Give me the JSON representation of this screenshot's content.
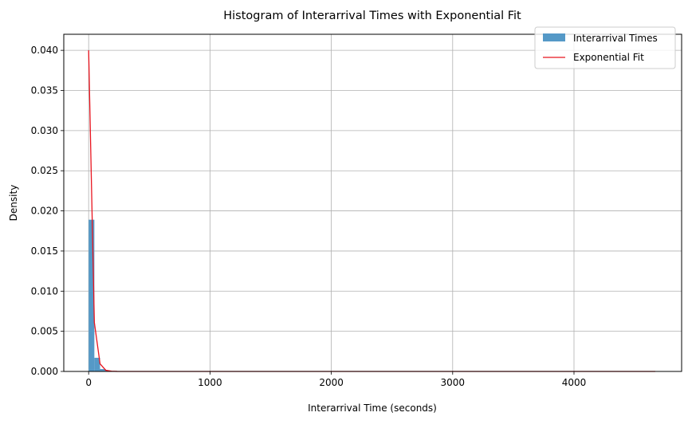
{
  "chart_data": {
    "type": "bar",
    "title": "Histogram of Interarrival Times with Exponential Fit",
    "xlabel": "Interarrival Time (seconds)",
    "ylabel": "Density",
    "xlim": [
      -205,
      4887
    ],
    "ylim": [
      0,
      0.042
    ],
    "x_ticks": [
      0,
      1000,
      2000,
      3000,
      4000
    ],
    "y_ticks": [
      0.0,
      0.005,
      0.01,
      0.015,
      0.02,
      0.025,
      0.03,
      0.035,
      0.04
    ],
    "x_tick_labels": [
      "0",
      "1000",
      "2000",
      "3000",
      "4000"
    ],
    "y_tick_labels": [
      "0.000",
      "0.005",
      "0.010",
      "0.015",
      "0.020",
      "0.025",
      "0.030",
      "0.035",
      "0.040"
    ],
    "grid": true,
    "legend_position": "top-right",
    "histogram": {
      "name": "Interarrival Times",
      "color": "#5599c7",
      "bin_width": 47,
      "bins": [
        {
          "x0": 0,
          "x1": 47,
          "density": 0.0189
        },
        {
          "x0": 47,
          "x1": 94,
          "density": 0.0017
        },
        {
          "x0": 94,
          "x1": 141,
          "density": 0.0003
        },
        {
          "x0": 141,
          "x1": 188,
          "density": 0.0001
        }
      ]
    },
    "fit": {
      "name": "Exponential Fit",
      "color": "#e8141e",
      "x": [
        0,
        47,
        94,
        141,
        188,
        235,
        300,
        500,
        1000,
        2000,
        3000,
        4000,
        4670
      ],
      "y": [
        0.04,
        0.0061,
        0.00095,
        0.00015,
        3e-05,
        5e-06,
        0,
        0,
        0,
        0,
        0,
        0,
        0
      ]
    }
  }
}
